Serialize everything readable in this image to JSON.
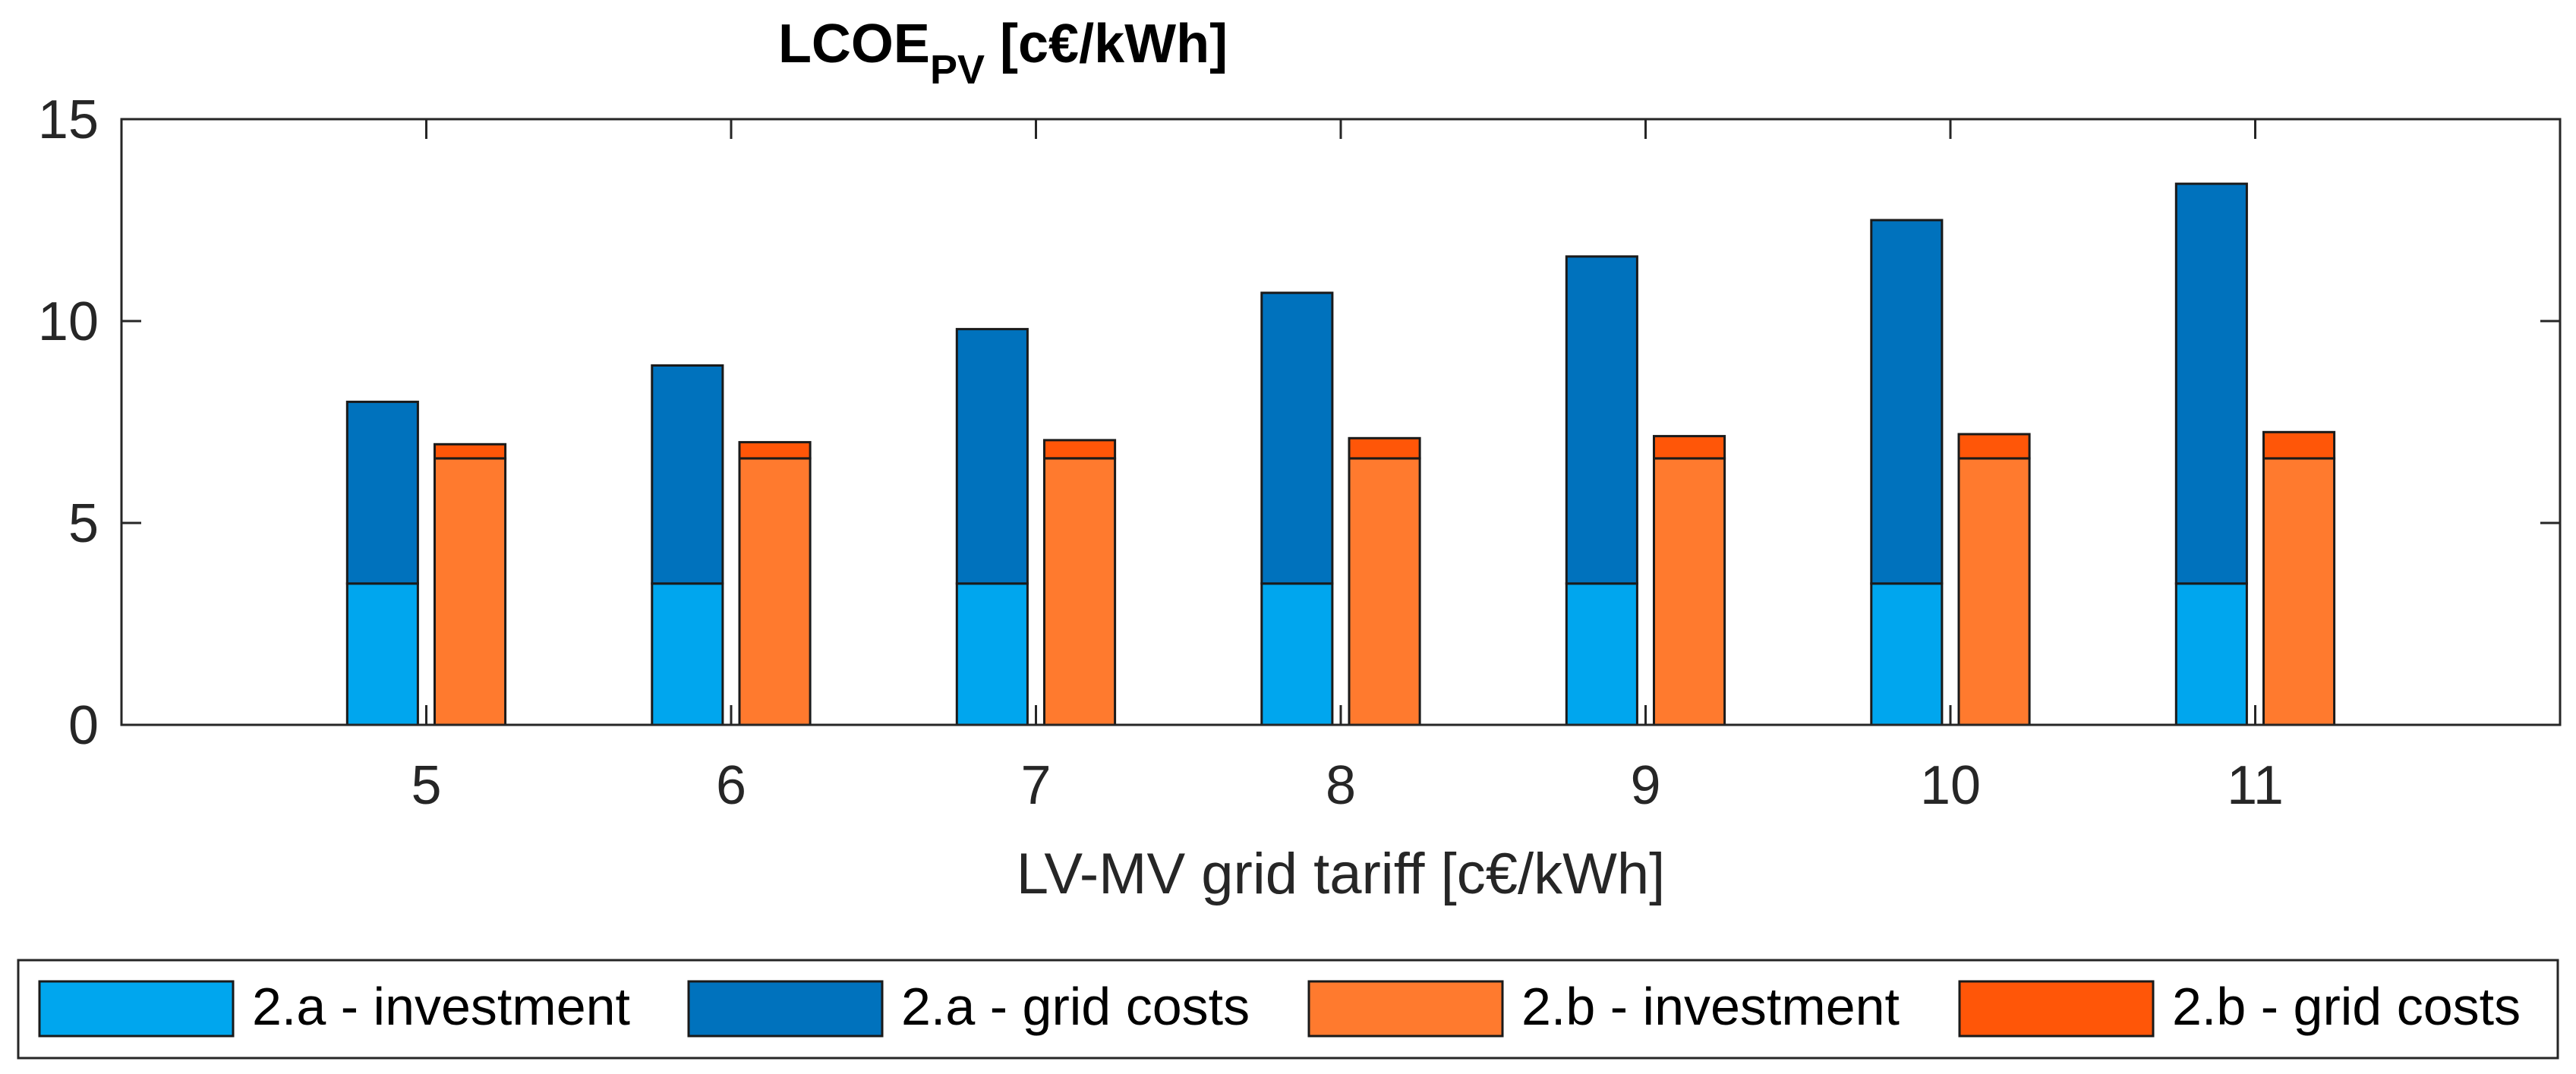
{
  "chart_data": {
    "type": "bar",
    "title_main": "LCOE",
    "title_sub": "PV",
    "title_rest": " [c€/kWh]",
    "xlabel": "LV-MV grid tariff [c€/kWh]",
    "ylabel": "",
    "categories": [
      "5",
      "6",
      "7",
      "8",
      "9",
      "10",
      "11"
    ],
    "x": [
      5,
      6,
      7,
      8,
      9,
      10,
      11
    ],
    "xlim": [
      4,
      12
    ],
    "ylim": [
      0,
      15
    ],
    "yticks": [
      0,
      5,
      10,
      15
    ],
    "yticklabels": [
      "0",
      "5",
      "10",
      "15"
    ],
    "grid": false,
    "legend_position": "bottom",
    "groups": [
      {
        "name": "2.a",
        "stack": [
          {
            "name": "2.a - investment",
            "color": "#00A6EE",
            "values": [
              3.5,
              3.5,
              3.5,
              3.5,
              3.5,
              3.5,
              3.5
            ]
          },
          {
            "name": "2.a - grid costs",
            "color": "#0072BD",
            "values": [
              4.5,
              5.4,
              6.3,
              7.2,
              8.1,
              9.0,
              9.9
            ]
          }
        ]
      },
      {
        "name": "2.b",
        "stack": [
          {
            "name": "2.b - investment",
            "color": "#FF7A2E",
            "values": [
              6.6,
              6.6,
              6.6,
              6.6,
              6.6,
              6.6,
              6.6
            ]
          },
          {
            "name": "2.b - grid costs",
            "color": "#FF5608",
            "values": [
              0.35,
              0.4,
              0.45,
              0.5,
              0.55,
              0.6,
              0.65
            ]
          }
        ]
      }
    ],
    "legend": [
      "2.a - investment",
      "2.a - grid costs",
      "2.b - investment",
      "2.b - grid costs"
    ]
  }
}
